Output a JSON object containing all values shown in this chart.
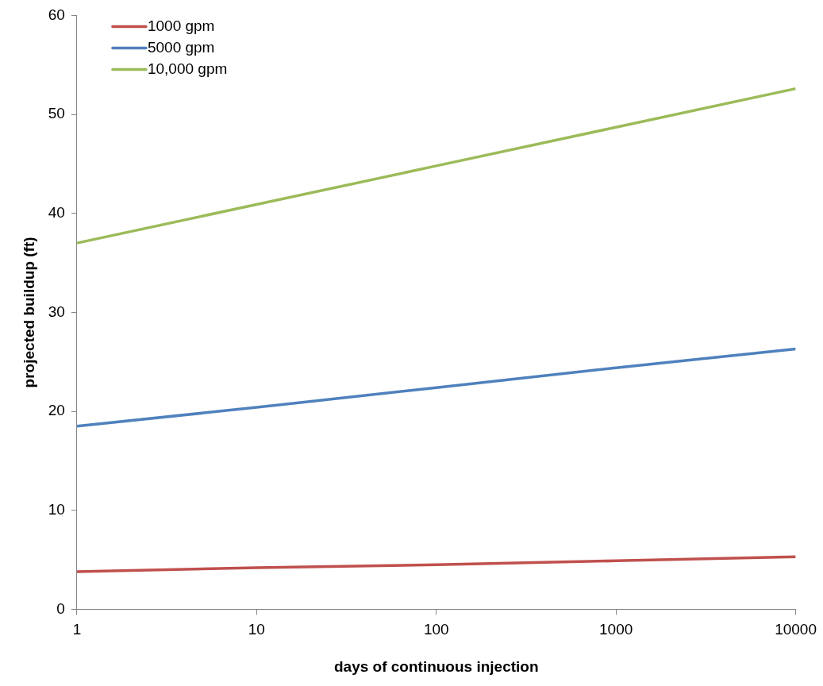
{
  "chart_data": {
    "type": "line",
    "xlabel": "days of continuous injection",
    "ylabel": "projected buildup (ft)",
    "log": "x",
    "xlim": [
      1,
      10000
    ],
    "xticks": [
      1,
      10,
      100,
      1000,
      10000
    ],
    "ylim": [
      0,
      60
    ],
    "yticks": [
      0,
      10,
      20,
      30,
      40,
      50,
      60
    ],
    "grid": false,
    "legend": "top left",
    "marker": "none",
    "line_style": "solid",
    "series": [
      {
        "name": "1000 gpm",
        "color": "#c0504d",
        "x": [
          1,
          10,
          100,
          1000,
          10000
        ],
        "values": [
          3.8,
          4.2,
          4.5,
          4.9,
          5.3
        ]
      },
      {
        "name": "5000 gpm",
        "color": "#4f81bd",
        "x": [
          1,
          10,
          100,
          1000,
          10000
        ],
        "values": [
          18.5,
          20.4,
          22.4,
          24.4,
          26.3
        ]
      },
      {
        "name": "10,000 gpm",
        "color": "#9bbb59",
        "x": [
          1,
          10,
          100,
          1000,
          10000
        ],
        "values": [
          37.0,
          40.9,
          44.8,
          48.7,
          52.6
        ]
      }
    ]
  }
}
